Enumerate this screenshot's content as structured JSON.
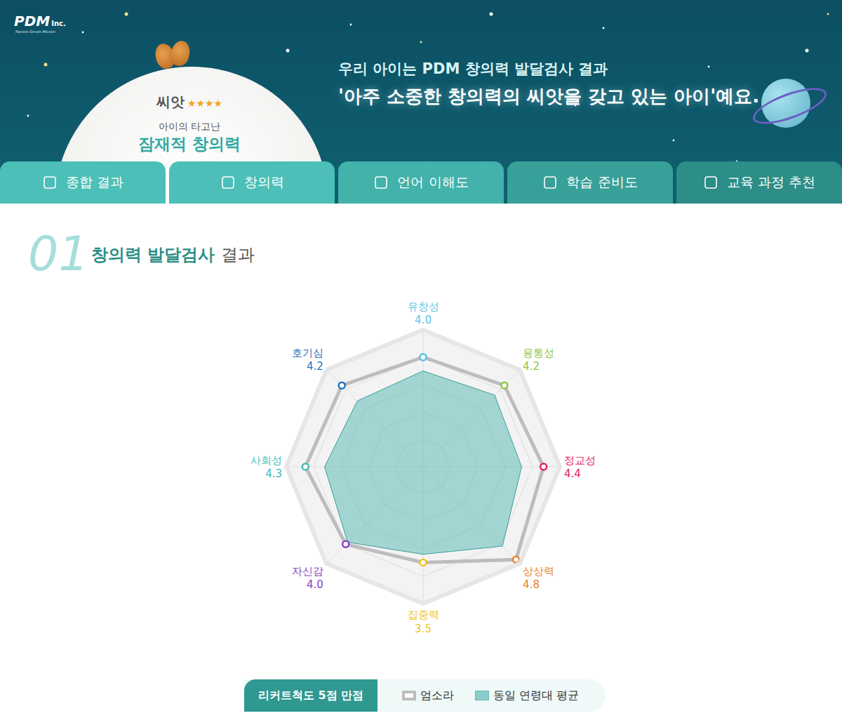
{
  "header": {
    "logo": "PDM",
    "logo_suffix": "Inc.",
    "logo_sub": "Passion Dream Mission",
    "badge": {
      "title": "씨앗",
      "rating": "★★★★",
      "caption": "아이의 타고난",
      "highlight": "잠재적 창의력"
    },
    "headline": "우리 아이는 PDM 창의력 발달검사 결과",
    "subheadline": "'아주 소중한 창의력의 씨앗을 갖고 있는 아이'예요."
  },
  "tabs": [
    "종합 결과",
    "창의력",
    "언어 이해도",
    "학습 준비도",
    "교육 과정 추천"
  ],
  "section": {
    "number": "01",
    "title": "창의력 발달검사",
    "title_suffix": "결과"
  },
  "chart_data": {
    "type": "radar",
    "categories": [
      "유창성",
      "융통성",
      "정교성",
      "상상력",
      "집중력",
      "자신감",
      "사회성",
      "호기심"
    ],
    "colors": [
      "#5cc3e6",
      "#8fc43e",
      "#e0206b",
      "#e9812a",
      "#f0c31a",
      "#8b3fc2",
      "#3dbdb5",
      "#1f72bd"
    ],
    "series": [
      {
        "name": "엄소라",
        "color": "#bdbdbd",
        "values": [
          4.0,
          4.2,
          4.4,
          4.8,
          3.5,
          4.0,
          4.3,
          4.2
        ],
        "value_labels": [
          "4.0",
          "4.2",
          "4.4",
          "4.8",
          "3.5",
          "4.0",
          "4.3",
          "4.2"
        ]
      },
      {
        "name": "동일 연령대 평균",
        "color": "#5fbcb6",
        "values": [
          3.5,
          3.7,
          3.6,
          4.1,
          3.2,
          3.9,
          3.6,
          3.4
        ]
      }
    ],
    "ylim": [
      0,
      5
    ],
    "yticks": [
      1,
      2,
      3,
      4,
      5
    ],
    "tick_labels": false,
    "grid": true,
    "data_labels": true
  },
  "scale_note": "리커트척도 5점 만점"
}
